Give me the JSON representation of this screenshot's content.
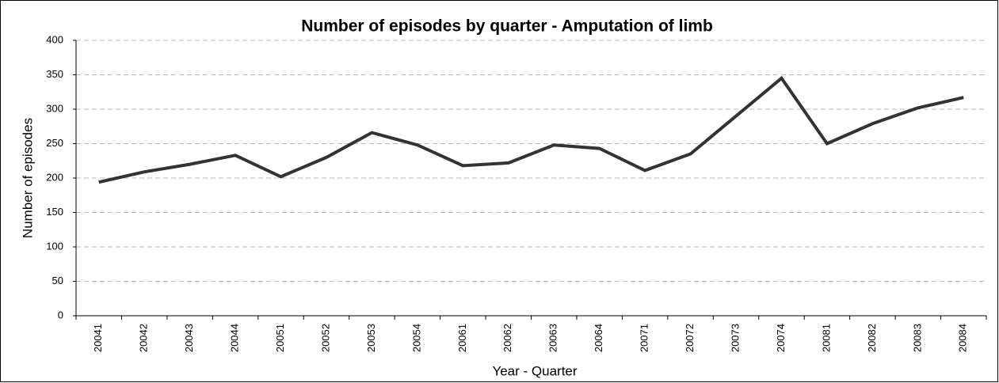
{
  "chart_data": {
    "type": "line",
    "title": "Number of episodes by quarter - Amputation of limb",
    "x_label": "Year - Quarter",
    "y_label": "Number of episodes",
    "categories": [
      "20041",
      "20042",
      "20043",
      "20044",
      "20051",
      "20052",
      "20053",
      "20054",
      "20061",
      "20062",
      "20063",
      "20064",
      "20071",
      "20072",
      "20073",
      "20074",
      "20081",
      "20082",
      "20083",
      "20084"
    ],
    "series": [
      {
        "name": "Episodes",
        "color": "#333333",
        "values": [
          194,
          209,
          220,
          233,
          202,
          230,
          266,
          248,
          218,
          222,
          248,
          243,
          211,
          235,
          290,
          345,
          250,
          279,
          302,
          317
        ]
      }
    ],
    "ylim": [
      0,
      400
    ],
    "yticks": [
      0,
      50,
      100,
      150,
      200,
      250,
      300,
      350,
      400
    ],
    "grid": true
  }
}
